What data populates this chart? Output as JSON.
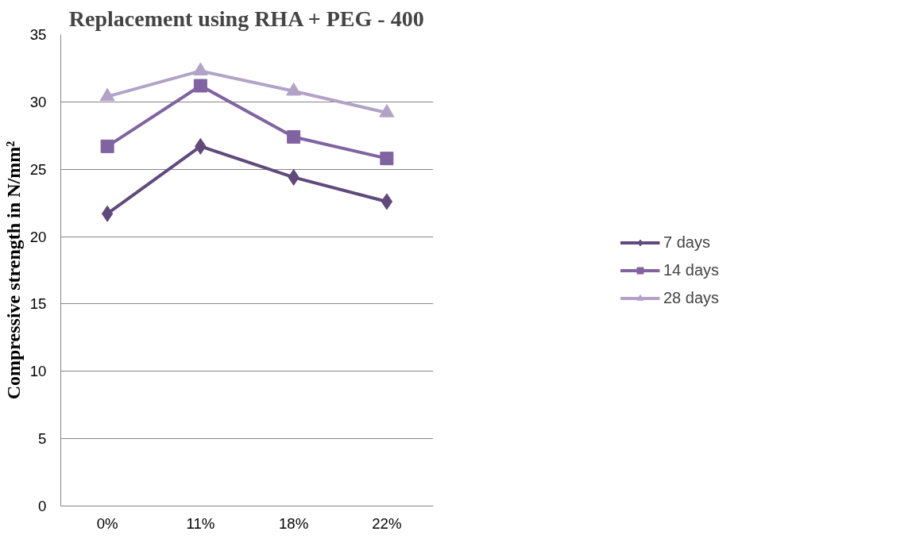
{
  "chart_data": {
    "type": "line",
    "title": "Replacement using RHA + PEG - 400",
    "ylabel": "Compressive strength in N/mm²",
    "categories": [
      "0%",
      "11%",
      "18%",
      "22%"
    ],
    "series": [
      {
        "name": "7 days",
        "color": "#604a7b",
        "marker": "diamond",
        "values": [
          21.7,
          26.7,
          24.4,
          22.6
        ]
      },
      {
        "name": "14 days",
        "color": "#8064a2",
        "marker": "square",
        "values": [
          26.7,
          31.2,
          27.4,
          25.8
        ]
      },
      {
        "name": "28 days",
        "color": "#b3a2c7",
        "marker": "triangle",
        "values": [
          30.4,
          32.3,
          30.8,
          29.2
        ]
      }
    ],
    "ylim": [
      0,
      35
    ],
    "yticks": [
      0,
      5,
      10,
      15,
      20,
      25,
      30,
      35
    ],
    "grid": "y",
    "legend": "right",
    "line_style": "solid"
  }
}
